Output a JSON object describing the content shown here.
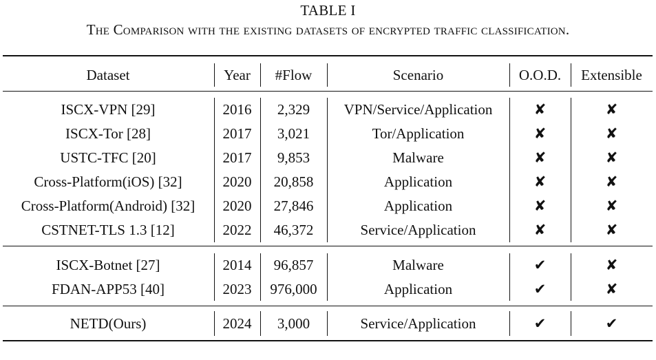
{
  "caption": {
    "label": "TABLE I",
    "title": "The Comparison with the existing datasets of encrypted traffic classification."
  },
  "table": {
    "headers": [
      "Dataset",
      "Year",
      "#Flow",
      "Scenario",
      "O.O.D.",
      "Extensible"
    ],
    "groups": [
      [
        [
          "ISCX-VPN [29]",
          "2016",
          "2,329",
          "VPN/Service/Application",
          "✘",
          "✘"
        ],
        [
          "ISCX-Tor [28]",
          "2017",
          "3,021",
          "Tor/Application",
          "✘",
          "✘"
        ],
        [
          "USTC-TFC [20]",
          "2017",
          "9,853",
          "Malware",
          "✘",
          "✘"
        ],
        [
          "Cross-Platform(iOS) [32]",
          "2020",
          "20,858",
          "Application",
          "✘",
          "✘"
        ],
        [
          "Cross-Platform(Android) [32]",
          "2020",
          "27,846",
          "Application",
          "✘",
          "✘"
        ],
        [
          "CSTNET-TLS 1.3 [12]",
          "2022",
          "46,372",
          "Service/Application",
          "✘",
          "✘"
        ]
      ],
      [
        [
          "ISCX-Botnet [27]",
          "2014",
          "96,857",
          "Malware",
          "✔",
          "✘"
        ],
        [
          "FDAN-APP53 [40]",
          "2023",
          "976,000",
          "Application",
          "✔",
          "✘"
        ]
      ],
      [
        [
          "NETD(Ours)",
          "2024",
          "3,000",
          "Service/Application",
          "✔",
          "✔"
        ]
      ]
    ]
  }
}
